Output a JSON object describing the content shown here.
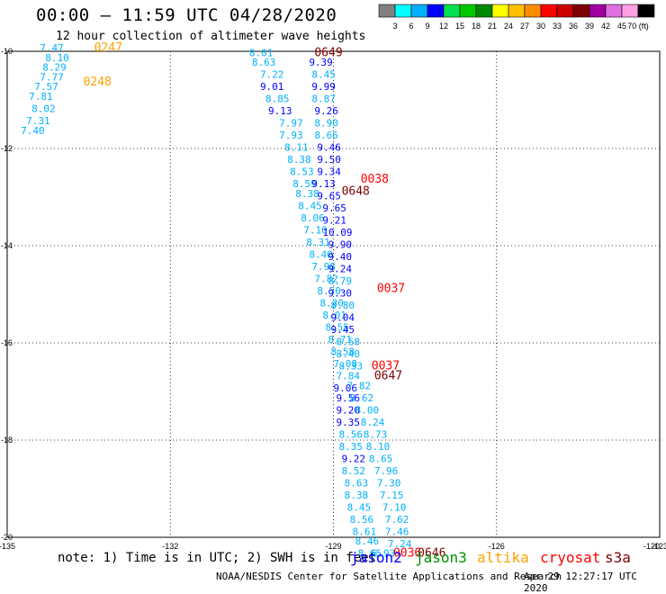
{
  "header": {
    "title": "00:00 — 11:59 UTC 04/28/2020",
    "subtitle": "12 hour collection of altimeter wave heights"
  },
  "colorbar": {
    "labels": [
      "3",
      "6",
      "9",
      "12",
      "15",
      "18",
      "21",
      "24",
      "27",
      "30",
      "33",
      "36",
      "39",
      "42",
      "45",
      "70 (ft)"
    ],
    "colors": [
      "#808080",
      "#00ffff",
      "#00b0ff",
      "#0000ff",
      "#00e050",
      "#00c800",
      "#008800",
      "#ffff00",
      "#ffc000",
      "#ff8c00",
      "#ff0000",
      "#cc0000",
      "#800000",
      "#a000a0",
      "#e070e0",
      "#ffa0e0",
      "#000000"
    ]
  },
  "footer": {
    "note": "note:  1) Time is in UTC;  2) SWH is in feet",
    "credit": "NOAA/NESDIS Center for Satellite Applications and Research",
    "timestamp": "Apr 29 12:27:17 UTC 2020"
  },
  "legend": [
    {
      "name": "jason2",
      "color": "#0000ff"
    },
    {
      "name": "jason3",
      "color": "#009000"
    },
    {
      "name": "altika",
      "color": "#ffa000"
    },
    {
      "name": "cryosat",
      "color": "#ff0000"
    },
    {
      "name": "s3a",
      "color": "#800000"
    }
  ],
  "chart_data": {
    "type": "scatter",
    "x_range": [
      -135,
      -123
    ],
    "y_range": [
      -20,
      -10
    ],
    "x_ticks": [
      "-135",
      "-132",
      "-129",
      "-126",
      "-123",
      "-120"
    ],
    "y_ticks": [
      "-10",
      "-12",
      "-14",
      "-16",
      "-18",
      "-20"
    ],
    "grid": true,
    "values": [
      {
        "x": -134.4,
        "y": -10.0,
        "label": "7.47",
        "color": "#00b0ff"
      },
      {
        "x": -134.3,
        "y": -10.2,
        "label": "8.10",
        "color": "#00b0ff"
      },
      {
        "x": -134.35,
        "y": -10.4,
        "label": "8.29",
        "color": "#00b0ff"
      },
      {
        "x": -134.4,
        "y": -10.6,
        "label": "7.77",
        "color": "#00b0ff"
      },
      {
        "x": -134.5,
        "y": -10.8,
        "label": "7.57",
        "color": "#00b0ff"
      },
      {
        "x": -134.6,
        "y": -11.0,
        "label": "7.81",
        "color": "#00b0ff"
      },
      {
        "x": -134.55,
        "y": -11.25,
        "label": "8.02",
        "color": "#00b0ff"
      },
      {
        "x": -134.65,
        "y": -11.5,
        "label": "7.31",
        "color": "#00b0ff"
      },
      {
        "x": -134.75,
        "y": -11.7,
        "label": "7.40",
        "color": "#00b0ff"
      },
      {
        "x": -133.4,
        "y": -10.0,
        "label": "0247",
        "color": "#ffa000"
      },
      {
        "x": -133.6,
        "y": -10.7,
        "label": "0248",
        "color": "#ffa000"
      },
      {
        "x": -130.55,
        "y": -10.1,
        "label": "8.01",
        "color": "#00b0ff"
      },
      {
        "x": -130.5,
        "y": -10.3,
        "label": "8.63",
        "color": "#00b0ff"
      },
      {
        "x": -130.35,
        "y": -10.55,
        "label": "7.22",
        "color": "#00b0ff"
      },
      {
        "x": -130.35,
        "y": -10.8,
        "label": "9.01",
        "color": "#0000ff"
      },
      {
        "x": -130.25,
        "y": -11.05,
        "label": "8.85",
        "color": "#00b0ff"
      },
      {
        "x": -130.2,
        "y": -11.3,
        "label": "9.13",
        "color": "#0000ff"
      },
      {
        "x": -130.0,
        "y": -11.55,
        "label": "7.97",
        "color": "#00b0ff"
      },
      {
        "x": -130.0,
        "y": -11.8,
        "label": "7.93",
        "color": "#00b0ff"
      },
      {
        "x": -129.9,
        "y": -12.05,
        "label": "8.11",
        "color": "#00b0ff"
      },
      {
        "x": -129.85,
        "y": -12.3,
        "label": "8.38",
        "color": "#00b0ff"
      },
      {
        "x": -129.8,
        "y": -12.55,
        "label": "8.53",
        "color": "#00b0ff"
      },
      {
        "x": -129.75,
        "y": -12.8,
        "label": "8.59",
        "color": "#00b0ff"
      },
      {
        "x": -129.7,
        "y": -13.0,
        "label": "8.38",
        "color": "#00b0ff"
      },
      {
        "x": -129.65,
        "y": -13.25,
        "label": "8.45",
        "color": "#00b0ff"
      },
      {
        "x": -129.6,
        "y": -13.5,
        "label": "8.06",
        "color": "#00b0ff"
      },
      {
        "x": -129.55,
        "y": -13.75,
        "label": "7.10",
        "color": "#00b0ff"
      },
      {
        "x": -129.5,
        "y": -14.0,
        "label": "8.31",
        "color": "#00b0ff"
      },
      {
        "x": -129.45,
        "y": -14.25,
        "label": "8.40",
        "color": "#00b0ff"
      },
      {
        "x": -129.4,
        "y": -14.5,
        "label": "7.98",
        "color": "#00b0ff"
      },
      {
        "x": -129.35,
        "y": -14.75,
        "label": "7.82",
        "color": "#00b0ff"
      },
      {
        "x": -129.3,
        "y": -15.0,
        "label": "8.50",
        "color": "#00b0ff"
      },
      {
        "x": -129.25,
        "y": -15.25,
        "label": "8.30",
        "color": "#00b0ff"
      },
      {
        "x": -129.2,
        "y": -15.5,
        "label": "8.01",
        "color": "#00b0ff"
      },
      {
        "x": -129.15,
        "y": -15.75,
        "label": "8.55",
        "color": "#00b0ff"
      },
      {
        "x": -129.1,
        "y": -16.0,
        "label": "8.71",
        "color": "#00b0ff"
      },
      {
        "x": -129.05,
        "y": -16.25,
        "label": "8.58",
        "color": "#00b0ff"
      },
      {
        "x": -129.0,
        "y": -16.5,
        "label": "7.08",
        "color": "#00b0ff"
      },
      {
        "x": -128.95,
        "y": -16.75,
        "label": "7.84",
        "color": "#00b0ff"
      },
      {
        "x": -129.35,
        "y": -10.1,
        "label": "0649",
        "color": "#800000"
      },
      {
        "x": -129.45,
        "y": -10.3,
        "label": "9.39",
        "color": "#0000ff"
      },
      {
        "x": -129.4,
        "y": -10.55,
        "label": "8.45",
        "color": "#00b0ff"
      },
      {
        "x": -129.4,
        "y": -10.8,
        "label": "9.99",
        "color": "#0000ff"
      },
      {
        "x": -129.4,
        "y": -11.05,
        "label": "8.87",
        "color": "#00b0ff"
      },
      {
        "x": -129.35,
        "y": -11.3,
        "label": "9.26",
        "color": "#0000ff"
      },
      {
        "x": -129.35,
        "y": -11.55,
        "label": "8.90",
        "color": "#00b0ff"
      },
      {
        "x": -129.35,
        "y": -11.8,
        "label": "8.66",
        "color": "#00b0ff"
      },
      {
        "x": -129.3,
        "y": -12.05,
        "label": "9.46",
        "color": "#0000ff"
      },
      {
        "x": -129.3,
        "y": -12.3,
        "label": "9.50",
        "color": "#0000ff"
      },
      {
        "x": -129.3,
        "y": -12.55,
        "label": "9.34",
        "color": "#0000ff"
      },
      {
        "x": -129.4,
        "y": -12.8,
        "label": "9.13",
        "color": "#0000ff"
      },
      {
        "x": -129.3,
        "y": -13.05,
        "label": "9.65",
        "color": "#0000ff"
      },
      {
        "x": -129.2,
        "y": -13.3,
        "label": "9.65",
        "color": "#0000ff"
      },
      {
        "x": -129.2,
        "y": -13.55,
        "label": "9.21",
        "color": "#0000ff"
      },
      {
        "x": -129.2,
        "y": -13.8,
        "label": "10.09",
        "color": "#0000ff"
      },
      {
        "x": -129.1,
        "y": -14.05,
        "label": "9.90",
        "color": "#0000ff"
      },
      {
        "x": -129.1,
        "y": -14.3,
        "label": "9.40",
        "color": "#0000ff"
      },
      {
        "x": -129.1,
        "y": -14.55,
        "label": "9.24",
        "color": "#0000ff"
      },
      {
        "x": -129.1,
        "y": -14.8,
        "label": "8.79",
        "color": "#00b0ff"
      },
      {
        "x": -129.1,
        "y": -15.05,
        "label": "9.30",
        "color": "#0000ff"
      },
      {
        "x": -129.05,
        "y": -15.3,
        "label": "8.80",
        "color": "#00b0ff"
      },
      {
        "x": -129.05,
        "y": -15.55,
        "label": "9.04",
        "color": "#0000ff"
      },
      {
        "x": -129.05,
        "y": -15.8,
        "label": "9.45",
        "color": "#0000ff"
      },
      {
        "x": -128.95,
        "y": -16.05,
        "label": "8.58",
        "color": "#00b0ff"
      },
      {
        "x": -128.95,
        "y": -16.3,
        "label": "8.40",
        "color": "#00b0ff"
      },
      {
        "x": -128.9,
        "y": -16.55,
        "label": "8.33",
        "color": "#00b0ff"
      },
      {
        "x": -128.5,
        "y": -12.7,
        "label": "0038",
        "color": "#ff0000"
      },
      {
        "x": -128.85,
        "y": -12.95,
        "label": "0648",
        "color": "#800000"
      },
      {
        "x": -128.2,
        "y": -14.95,
        "label": "0037",
        "color": "#ff0000"
      },
      {
        "x": -128.3,
        "y": -16.55,
        "label": "0037",
        "color": "#ff0000"
      },
      {
        "x": -128.25,
        "y": -16.75,
        "label": "0647",
        "color": "#800000"
      },
      {
        "x": -129.0,
        "y": -17.0,
        "label": "9.06",
        "color": "#0000ff"
      },
      {
        "x": -128.95,
        "y": -17.2,
        "label": "9.56",
        "color": "#0000ff"
      },
      {
        "x": -128.95,
        "y": -17.45,
        "label": "9.20",
        "color": "#0000ff"
      },
      {
        "x": -128.95,
        "y": -17.7,
        "label": "9.35",
        "color": "#0000ff"
      },
      {
        "x": -128.9,
        "y": -17.95,
        "label": "8.56",
        "color": "#00b0ff"
      },
      {
        "x": -128.9,
        "y": -18.2,
        "label": "8.35",
        "color": "#00b0ff"
      },
      {
        "x": -128.85,
        "y": -18.45,
        "label": "9.22",
        "color": "#0000ff"
      },
      {
        "x": -128.85,
        "y": -18.7,
        "label": "8.52",
        "color": "#00b0ff"
      },
      {
        "x": -128.8,
        "y": -18.95,
        "label": "8.63",
        "color": "#00b0ff"
      },
      {
        "x": -128.8,
        "y": -19.2,
        "label": "8.38",
        "color": "#00b0ff"
      },
      {
        "x": -128.75,
        "y": -19.45,
        "label": "8.45",
        "color": "#00b0ff"
      },
      {
        "x": -128.7,
        "y": -19.7,
        "label": "8.56",
        "color": "#00b0ff"
      },
      {
        "x": -128.65,
        "y": -19.95,
        "label": "8.61",
        "color": "#00b0ff"
      },
      {
        "x": -128.6,
        "y": -20.15,
        "label": "8.46",
        "color": "#00b0ff"
      },
      {
        "x": -128.55,
        "y": -20.4,
        "label": "8.65",
        "color": "#00b0ff"
      },
      {
        "x": -128.75,
        "y": -16.95,
        "label": "7.82",
        "color": "#00b0ff"
      },
      {
        "x": -128.7,
        "y": -17.2,
        "label": "8.62",
        "color": "#00b0ff"
      },
      {
        "x": -128.6,
        "y": -17.45,
        "label": "8.00",
        "color": "#00b0ff"
      },
      {
        "x": -128.5,
        "y": -17.7,
        "label": "8.24",
        "color": "#00b0ff"
      },
      {
        "x": -128.45,
        "y": -17.95,
        "label": "8.73",
        "color": "#00b0ff"
      },
      {
        "x": -128.4,
        "y": -18.2,
        "label": "8.10",
        "color": "#00b0ff"
      },
      {
        "x": -128.35,
        "y": -18.45,
        "label": "8.65",
        "color": "#00b0ff"
      },
      {
        "x": -128.25,
        "y": -18.7,
        "label": "7.96",
        "color": "#00b0ff"
      },
      {
        "x": -128.2,
        "y": -18.95,
        "label": "7.30",
        "color": "#00b0ff"
      },
      {
        "x": -128.15,
        "y": -19.2,
        "label": "7.15",
        "color": "#00b0ff"
      },
      {
        "x": -128.1,
        "y": -19.45,
        "label": "7.10",
        "color": "#00b0ff"
      },
      {
        "x": -128.05,
        "y": -19.7,
        "label": "7.62",
        "color": "#00b0ff"
      },
      {
        "x": -128.05,
        "y": -19.95,
        "label": "7.46",
        "color": "#00b0ff"
      },
      {
        "x": -128.0,
        "y": -20.2,
        "label": "7.24",
        "color": "#00b0ff"
      },
      {
        "x": -128.3,
        "y": -20.4,
        "label": "6.93",
        "color": "#00b0ff"
      },
      {
        "x": -127.9,
        "y": -20.4,
        "label": "0036",
        "color": "#ff0000"
      },
      {
        "x": -127.45,
        "y": -20.4,
        "label": "0646",
        "color": "#800000"
      }
    ]
  }
}
